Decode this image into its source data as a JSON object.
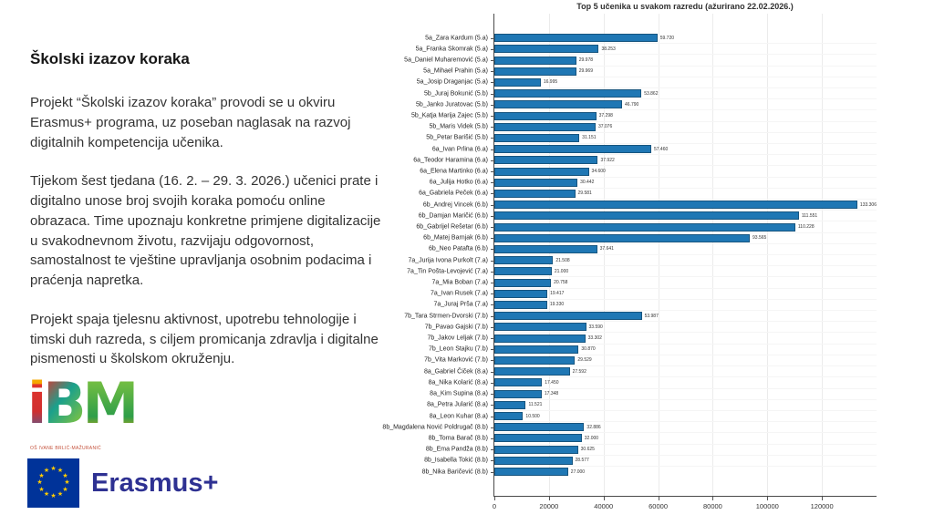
{
  "slide": {
    "title": "Školski izazov koraka",
    "paragraphs": [
      "Projekt “Školski izazov koraka” provodi se u okviru Erasmus+ programa, uz poseban naglasak na razvoj digitalnih kompetencija učenika.",
      "Tijekom šest tjedana (16. 2. – 29. 3. 2026.) učenici prate i digitalno unose broj svojih koraka pomoću online obrazaca. Time upoznaju konkretne primjene digitalizacije u svakodnevnom životu, razvijaju odgovornost, samostalnost te vještine upravljanja osobnim podacima i praćenja napretka.",
      "Projekt spaja tjelesnu aktivnost, upotrebu tehnologije i timski duh razreda, s ciljem promicanja zdravlja i digitalne pismenosti u školskom okruženju."
    ]
  },
  "logos": {
    "school_logo_letters": [
      "i",
      "B",
      "M"
    ],
    "school_name": "OŠ IVANE BRLIĆ-MAŽURANIĆ",
    "erasmus_label": "Erasmus+",
    "star_glyph": "★",
    "eu_blue": "#003399",
    "star_yellow": "#FFCC00",
    "erasmus_blue": "#2E3192"
  },
  "chart_data": {
    "type": "bar",
    "orientation": "horizontal",
    "title": "Top 5 učenika u svakom razredu (ažurirano 22.02.2026.)",
    "xlabel": "",
    "ylabel": "",
    "xlim": [
      0,
      140000
    ],
    "x_ticks": [
      0,
      20000,
      40000,
      60000,
      80000,
      100000,
      120000
    ],
    "grid": true,
    "legend": false,
    "bar_color": "#1F77B4",
    "bar_edge_color": "#17557F",
    "categories": [
      "5a_Zara Kardum (5.a)",
      "5a_Franka Skomrak (5.a)",
      "5a_Daniel Muharemović (5.a)",
      "5a_Mihael Prahin (5.a)",
      "5a_Josip Draganjac (5.a)",
      "5b_Juraj Bokunić (5.b)",
      "5b_Janko Juratovac (5.b)",
      "5b_Katja Marija Zajec (5.b)",
      "5b_Maris Videk (5.b)",
      "5b_Petar Barišić (5.b)",
      "6a_Ivan Prlina (6.a)",
      "6a_Teodor Haramina (6.a)",
      "6a_Elena Martinko (6.a)",
      "6a_Julija Hotko (6.a)",
      "6a_Gabriela Peček (6.a)",
      "6b_Andrej Vincek (6.b)",
      "6b_Damjan Maričić (6.b)",
      "6b_Gabrijel Rešetar (6.b)",
      "6b_Matej Barnjak (6.b)",
      "6b_Neo Patafta (6.b)",
      "7a_Jurija Ivona Purkolt (7.a)",
      "7a_Tin Pošta-Levojević (7.a)",
      "7a_Mia Boban (7.a)",
      "7a_Ivan Rusek (7.a)",
      "7a_Juraj Prša (7.a)",
      "7b_Tara Strmen-Dvorski (7.b)",
      "7b_Pavao Gajski (7.b)",
      "7b_Jakov Leljak (7.b)",
      "7b_Leon Stajku (7.b)",
      "7b_Vita Marković (7.b)",
      "8a_Gabriel Čiček (8.a)",
      "8a_Nika Kolarić (8.a)",
      "8a_Kim Supina (8.a)",
      "8a_Petra Jularić (8.a)",
      "8a_Leon Kuhar (8.a)",
      "8b_Magdalena Nović Poldrugač (8.b)",
      "8b_Toma Barač (8.b)",
      "8b_Ema Pandža (8.b)",
      "8b_Isabella Tokić (8.b)",
      "8b_Nika Baričević (8.b)"
    ],
    "values": [
      59720,
      38253,
      29978,
      29969,
      16995,
      53862,
      46790,
      37298,
      37076,
      31151,
      57460,
      37922,
      34600,
      30442,
      29581,
      133306,
      111551,
      110228,
      93565,
      37641,
      21508,
      21000,
      20758,
      19417,
      19330,
      53987,
      33590,
      33302,
      30870,
      29529,
      27592,
      17450,
      17348,
      11521,
      10500,
      32886,
      32000,
      30625,
      28577,
      27000
    ]
  }
}
